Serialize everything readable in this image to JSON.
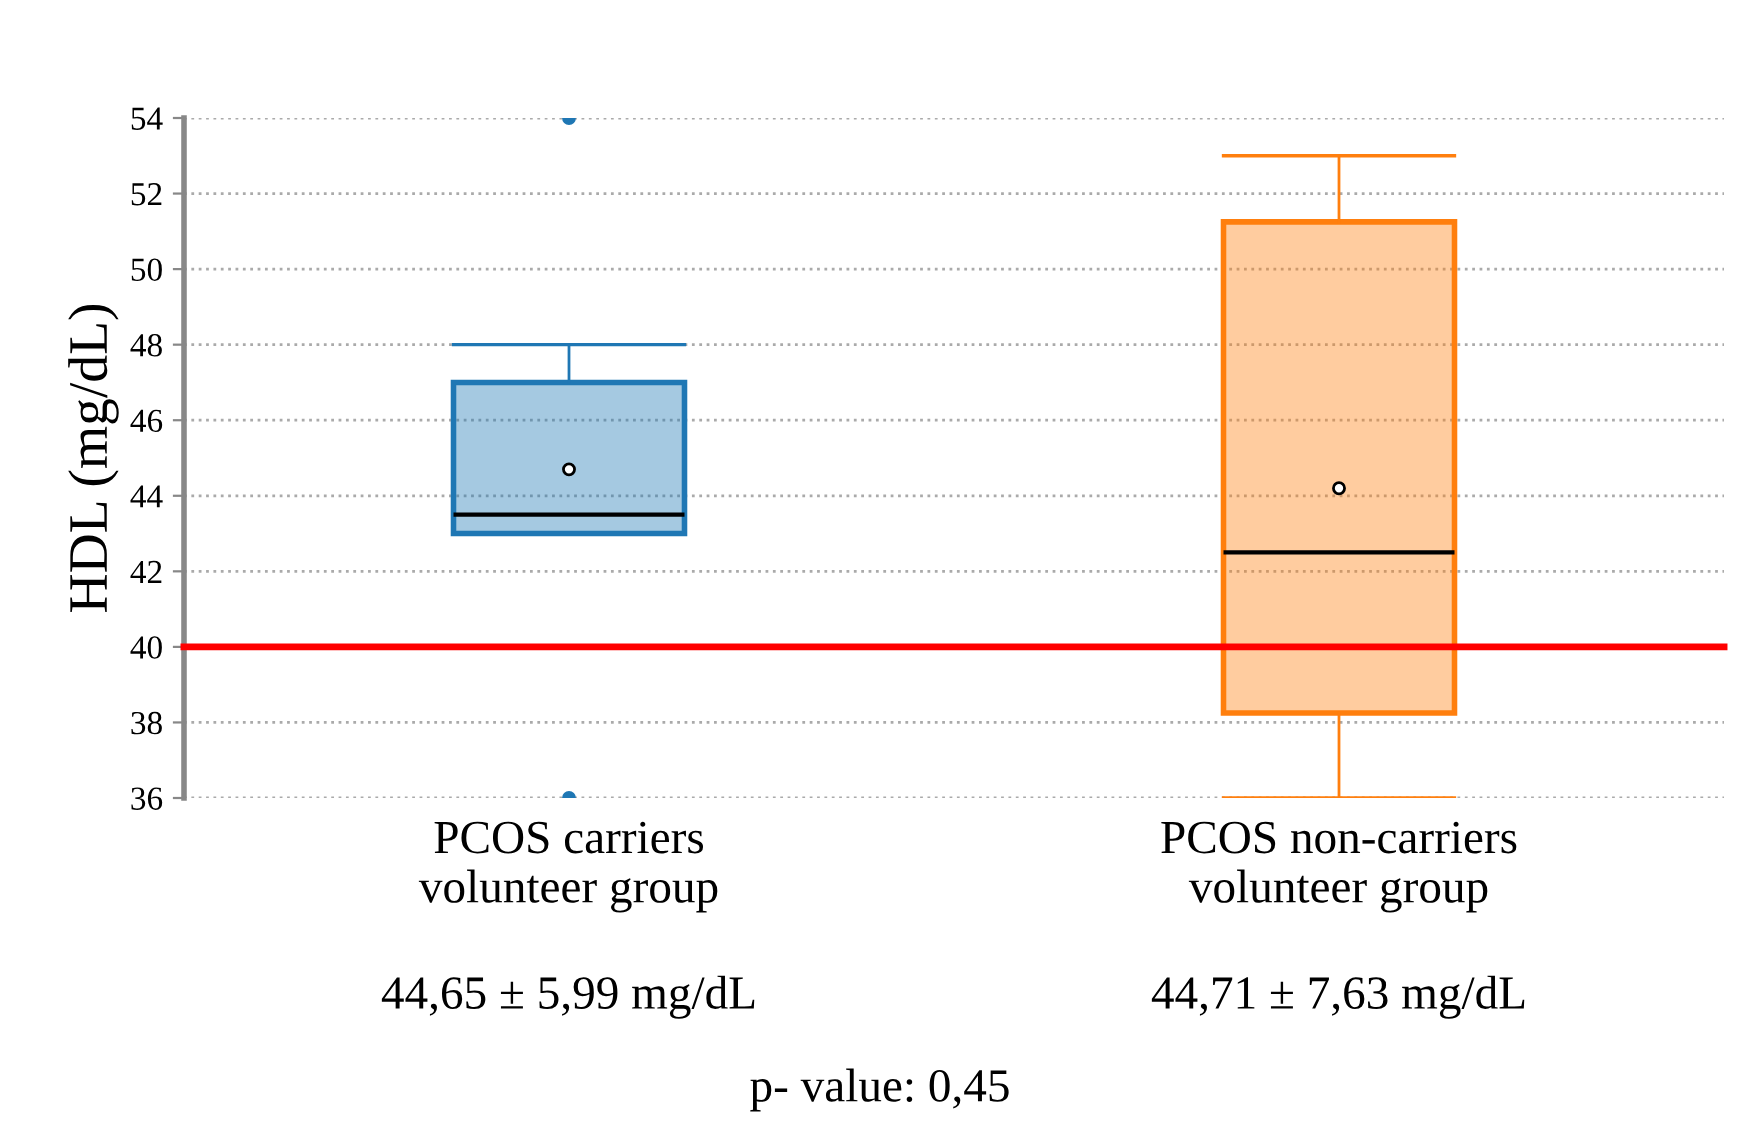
{
  "chart_data": {
    "type": "box",
    "ylabel": "HDL (mg/dL)",
    "categories": [
      "PCOS carriers\nvolunteer group",
      "PCOS non-carriers\nvolunteer group"
    ],
    "boxes": [
      {
        "low": 43,
        "q1": 43,
        "median": 43.5,
        "q3": 47,
        "high": 48,
        "mean": 44.7,
        "outliers": [
          54,
          36
        ]
      },
      {
        "low": 36,
        "q1": 38.25,
        "median": 42.5,
        "q3": 51.25,
        "high": 53,
        "mean": 44.2
      }
    ],
    "colors": [
      "#1f77b4",
      "#ff7f0e"
    ],
    "ylim": [
      36,
      54
    ],
    "yticks": [
      36,
      38,
      40,
      42,
      44,
      46,
      48,
      50,
      52,
      54
    ],
    "grid": "y",
    "ref_lines": [
      {
        "axis": "y",
        "value": 40,
        "color": "#ff0000"
      }
    ],
    "annotations": [
      "44,65 ± 5,99 mg/dL",
      "44,71 ± 7,63 mg/dL",
      "p- value: 0,45"
    ]
  }
}
